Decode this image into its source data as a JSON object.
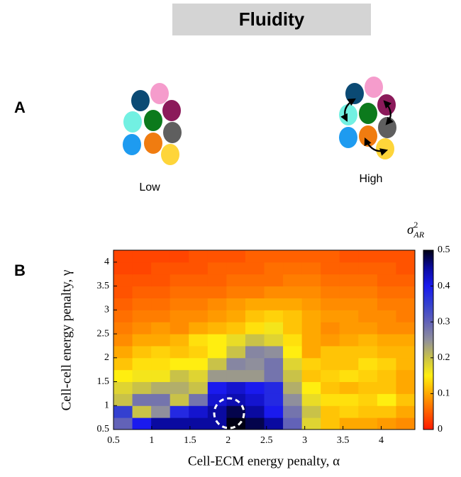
{
  "header": {
    "title": "Fluidity"
  },
  "panels": [
    {
      "label": "A",
      "captions": [
        "Low",
        "High"
      ]
    },
    {
      "label": "B"
    }
  ],
  "chart_data": {
    "type": "heatmap",
    "xlabel": "Cell-ECM energy penalty, α",
    "ylabel": "Cell-cell energy penalty, γ",
    "colorbar_title": {
      "base": "σ",
      "sup": "2",
      "sub": "AR"
    },
    "xlim": [
      0.5,
      4.44
    ],
    "ylim": [
      0.5,
      4.25
    ],
    "xticks": [
      0.5,
      1,
      1.5,
      2,
      2.5,
      3,
      3.5,
      4
    ],
    "yticks": [
      0.5,
      1,
      1.5,
      2,
      2.5,
      3,
      3.5,
      4
    ],
    "clim": [
      0,
      0.5
    ],
    "cticks": [
      0,
      0.1,
      0.2,
      0.3,
      0.4,
      0.5
    ],
    "colorscale": [
      [
        0,
        "#ff1a00"
      ],
      [
        0.1,
        "#ffa800"
      ],
      [
        0.15,
        "#ffee10"
      ],
      [
        0.2,
        "#c9c248"
      ],
      [
        0.25,
        "#8f8f9c"
      ],
      [
        0.3,
        "#6262b8"
      ],
      [
        0.35,
        "#3440d0"
      ],
      [
        0.4,
        "#1a1aee"
      ],
      [
        0.45,
        "#0a0aa0"
      ],
      [
        0.5,
        "#000014"
      ]
    ],
    "z": [
      [
        0.3,
        0.4,
        0.45,
        0.45,
        0.45,
        0.45,
        0.5,
        0.48,
        0.45,
        0.3,
        0.18,
        0.12,
        0.1,
        0.1,
        0.09,
        0.08
      ],
      [
        0.35,
        0.2,
        0.25,
        0.38,
        0.42,
        0.45,
        0.48,
        0.45,
        0.4,
        0.28,
        0.2,
        0.12,
        0.13,
        0.12,
        0.12,
        0.1
      ],
      [
        0.2,
        0.28,
        0.28,
        0.2,
        0.28,
        0.42,
        0.44,
        0.42,
        0.38,
        0.25,
        0.17,
        0.14,
        0.14,
        0.13,
        0.15,
        0.12
      ],
      [
        0.18,
        0.2,
        0.22,
        0.22,
        0.2,
        0.4,
        0.42,
        0.4,
        0.38,
        0.22,
        0.15,
        0.12,
        0.11,
        0.12,
        0.12,
        0.1
      ],
      [
        0.15,
        0.16,
        0.16,
        0.2,
        0.18,
        0.24,
        0.24,
        0.24,
        0.28,
        0.2,
        0.12,
        0.13,
        0.14,
        0.13,
        0.12,
        0.1
      ],
      [
        0.12,
        0.14,
        0.14,
        0.15,
        0.15,
        0.2,
        0.26,
        0.25,
        0.28,
        0.18,
        0.13,
        0.12,
        0.12,
        0.14,
        0.13,
        0.11
      ],
      [
        0.1,
        0.12,
        0.13,
        0.12,
        0.13,
        0.15,
        0.2,
        0.26,
        0.25,
        0.15,
        0.1,
        0.12,
        0.12,
        0.12,
        0.11,
        0.11
      ],
      [
        0.08,
        0.1,
        0.1,
        0.11,
        0.14,
        0.15,
        0.17,
        0.2,
        0.18,
        0.14,
        0.1,
        0.09,
        0.1,
        0.11,
        0.1,
        0.1
      ],
      [
        0.07,
        0.08,
        0.09,
        0.08,
        0.1,
        0.11,
        0.12,
        0.14,
        0.16,
        0.12,
        0.1,
        0.08,
        0.09,
        0.09,
        0.08,
        0.08
      ],
      [
        0.06,
        0.07,
        0.07,
        0.08,
        0.08,
        0.09,
        0.1,
        0.12,
        0.13,
        0.12,
        0.1,
        0.09,
        0.09,
        0.08,
        0.08,
        0.07
      ],
      [
        0.05,
        0.06,
        0.06,
        0.07,
        0.07,
        0.08,
        0.09,
        0.1,
        0.1,
        0.1,
        0.09,
        0.08,
        0.08,
        0.08,
        0.07,
        0.07
      ],
      [
        0.04,
        0.05,
        0.05,
        0.06,
        0.06,
        0.06,
        0.07,
        0.07,
        0.08,
        0.08,
        0.08,
        0.07,
        0.07,
        0.07,
        0.06,
        0.06
      ],
      [
        0.04,
        0.04,
        0.04,
        0.05,
        0.05,
        0.05,
        0.06,
        0.06,
        0.06,
        0.07,
        0.07,
        0.06,
        0.06,
        0.06,
        0.05,
        0.05
      ],
      [
        0.03,
        0.03,
        0.04,
        0.04,
        0.04,
        0.05,
        0.05,
        0.05,
        0.06,
        0.06,
        0.06,
        0.05,
        0.05,
        0.05,
        0.05,
        0.04
      ],
      [
        0.03,
        0.03,
        0.03,
        0.03,
        0.04,
        0.04,
        0.04,
        0.05,
        0.05,
        0.05,
        0.05,
        0.05,
        0.04,
        0.04,
        0.04,
        0.04
      ]
    ]
  }
}
